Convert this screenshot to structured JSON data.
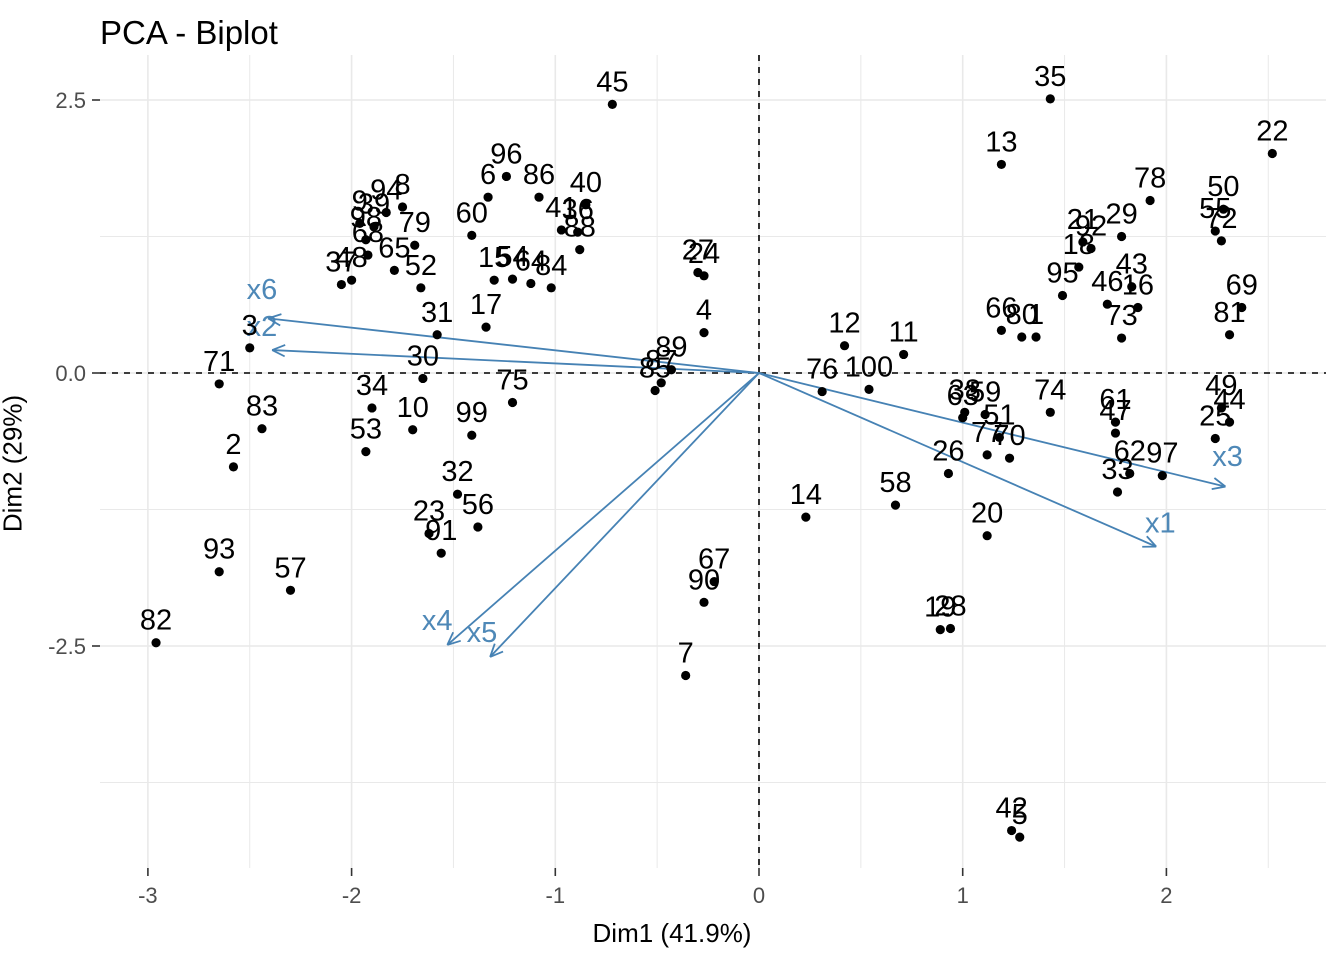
{
  "chart_data": {
    "type": "scatter",
    "title": "PCA - Biplot",
    "xlabel": "Dim1 (41.9%)",
    "ylabel": "Dim2 (29%)",
    "xlim": [
      -3.23,
      2.78
    ],
    "ylim": [
      -4.53,
      2.91
    ],
    "x_ticks": [
      -3,
      -2,
      -1,
      0,
      1,
      2
    ],
    "x_tick_labels": [
      "-3",
      "-2",
      "-1",
      "0",
      "1",
      "2"
    ],
    "x_minor_ticks": [
      -2.5,
      -1.5,
      -0.5,
      0.5,
      1.5,
      2.5
    ],
    "y_ticks": [
      2.5,
      0,
      -2.5
    ],
    "y_tick_labels": [
      "2.5",
      "0.0",
      "-2.5"
    ],
    "y_minor_ticks": [
      1.25,
      -1.25,
      -3.75
    ],
    "grid": true,
    "zero_lines_dashed": true,
    "legend_position": "none",
    "colors": {
      "point": "#000000",
      "point_label": "#000000",
      "arrow": "#4682B4",
      "arrow_label": "#4e88b7",
      "grid": "#e9e9e9",
      "dashed_line": "#000000",
      "tick_text": "#4d4d4d",
      "tick_mark": "#333333",
      "background": "#ffffff"
    },
    "points": [
      {
        "n": "1",
        "x": 1.36,
        "y": 0.33
      },
      {
        "n": "2",
        "x": -2.58,
        "y": -0.86
      },
      {
        "n": "3",
        "x": -2.5,
        "y": 0.23
      },
      {
        "n": "4",
        "x": -0.27,
        "y": 0.37
      },
      {
        "n": "5",
        "x": 1.28,
        "y": -4.25
      },
      {
        "n": "6",
        "x": -1.33,
        "y": 1.61
      },
      {
        "n": "7",
        "x": -0.36,
        "y": -2.77
      },
      {
        "n": "8",
        "x": -1.75,
        "y": 1.52
      },
      {
        "n": "9",
        "x": -1.96,
        "y": 1.37
      },
      {
        "n": "10",
        "x": -1.7,
        "y": -0.52
      },
      {
        "n": "11",
        "x": 0.71,
        "y": 0.17
      },
      {
        "n": "12",
        "x": 0.42,
        "y": 0.25
      },
      {
        "n": "13",
        "x": 1.19,
        "y": 1.91
      },
      {
        "n": "14",
        "x": 0.23,
        "y": -1.32
      },
      {
        "n": "15",
        "x": -1.3,
        "y": 0.85
      },
      {
        "n": "16",
        "x": 1.86,
        "y": 0.6
      },
      {
        "n": "17",
        "x": -1.34,
        "y": 0.42
      },
      {
        "n": "18",
        "x": 1.57,
        "y": 0.97
      },
      {
        "n": "19",
        "x": 0.89,
        "y": -2.35
      },
      {
        "n": "20",
        "x": 1.12,
        "y": -1.49
      },
      {
        "n": "21",
        "x": 1.59,
        "y": 1.2
      },
      {
        "n": "22",
        "x": 2.52,
        "y": 2.01
      },
      {
        "n": "23",
        "x": -1.62,
        "y": -1.47
      },
      {
        "n": "24",
        "x": -0.27,
        "y": 0.89
      },
      {
        "n": "25",
        "x": 2.24,
        "y": -0.6
      },
      {
        "n": "26",
        "x": 0.93,
        "y": -0.92
      },
      {
        "n": "27",
        "x": -0.3,
        "y": 0.92
      },
      {
        "n": "28",
        "x": 0.94,
        "y": -2.34
      },
      {
        "n": "29",
        "x": 1.78,
        "y": 1.25
      },
      {
        "n": "30",
        "x": -1.65,
        "y": -0.05
      },
      {
        "n": "31",
        "x": -1.58,
        "y": 0.35
      },
      {
        "n": "32",
        "x": -1.48,
        "y": -1.11
      },
      {
        "n": "33",
        "x": 1.76,
        "y": -1.09
      },
      {
        "n": "34",
        "x": -1.9,
        "y": -0.32
      },
      {
        "n": "35",
        "x": 1.43,
        "y": 2.51
      },
      {
        "n": "36",
        "x": -0.89,
        "y": 1.29
      },
      {
        "n": "37",
        "x": -2.05,
        "y": 0.81
      },
      {
        "n": "38",
        "x": 1.01,
        "y": -0.36
      },
      {
        "n": "39",
        "x": -1.89,
        "y": 1.34
      },
      {
        "n": "40",
        "x": -0.85,
        "y": 1.54
      },
      {
        "n": "41",
        "x": -0.97,
        "y": 1.31
      },
      {
        "n": "42",
        "x": 1.24,
        "y": -4.19
      },
      {
        "n": "43",
        "x": 1.83,
        "y": 0.79
      },
      {
        "n": "44",
        "x": 2.31,
        "y": -0.45
      },
      {
        "n": "45",
        "x": -0.72,
        "y": 2.46
      },
      {
        "n": "46",
        "x": 1.71,
        "y": 0.63
      },
      {
        "n": "47",
        "x": 1.75,
        "y": -0.55
      },
      {
        "n": "48",
        "x": -2.0,
        "y": 0.85
      },
      {
        "n": "49",
        "x": 2.27,
        "y": -0.32
      },
      {
        "n": "50",
        "x": 2.28,
        "y": 1.5
      },
      {
        "n": "51",
        "x": 1.18,
        "y": -0.59
      },
      {
        "n": "52",
        "x": -1.66,
        "y": 0.78
      },
      {
        "n": "53",
        "x": -1.93,
        "y": -0.72
      },
      {
        "n": "54",
        "x": -1.21,
        "y": 0.86
      },
      {
        "n": "55",
        "x": 2.24,
        "y": 1.3
      },
      {
        "n": "56",
        "x": -1.38,
        "y": -1.41
      },
      {
        "n": "57",
        "x": -2.3,
        "y": -1.99
      },
      {
        "n": "58",
        "x": 0.67,
        "y": -1.21
      },
      {
        "n": "59",
        "x": 1.11,
        "y": -0.38
      },
      {
        "n": "60",
        "x": -1.41,
        "y": 1.26
      },
      {
        "n": "61",
        "x": 1.75,
        "y": -0.45
      },
      {
        "n": "62",
        "x": 1.82,
        "y": -0.92
      },
      {
        "n": "63",
        "x": 1.0,
        "y": -0.41
      },
      {
        "n": "64",
        "x": -1.12,
        "y": 0.82
      },
      {
        "n": "65",
        "x": -1.79,
        "y": 0.94
      },
      {
        "n": "66",
        "x": 1.19,
        "y": 0.39
      },
      {
        "n": "67",
        "x": -0.22,
        "y": -1.91
      },
      {
        "n": "68",
        "x": -1.92,
        "y": 1.08
      },
      {
        "n": "69",
        "x": 2.37,
        "y": 0.6
      },
      {
        "n": "70",
        "x": 1.23,
        "y": -0.78
      },
      {
        "n": "71",
        "x": -2.65,
        "y": -0.1
      },
      {
        "n": "72",
        "x": 2.27,
        "y": 1.21
      },
      {
        "n": "73",
        "x": 1.78,
        "y": 0.32
      },
      {
        "n": "74",
        "x": 1.43,
        "y": -0.36
      },
      {
        "n": "75",
        "x": -1.21,
        "y": -0.27
      },
      {
        "n": "76",
        "x": 0.31,
        "y": -0.17
      },
      {
        "n": "77",
        "x": 1.12,
        "y": -0.75
      },
      {
        "n": "78",
        "x": 1.92,
        "y": 1.58
      },
      {
        "n": "79",
        "x": -1.69,
        "y": 1.17
      },
      {
        "n": "80",
        "x": 1.29,
        "y": 0.33
      },
      {
        "n": "81",
        "x": 2.31,
        "y": 0.35
      },
      {
        "n": "82",
        "x": -2.96,
        "y": -2.47
      },
      {
        "n": "83",
        "x": -2.44,
        "y": -0.51
      },
      {
        "n": "84",
        "x": -1.02,
        "y": 0.78
      },
      {
        "n": "85",
        "x": -0.51,
        "y": -0.16
      },
      {
        "n": "86",
        "x": -1.08,
        "y": 1.61
      },
      {
        "n": "87",
        "x": -0.48,
        "y": -0.09
      },
      {
        "n": "88",
        "x": -0.88,
        "y": 1.13
      },
      {
        "n": "89",
        "x": -0.43,
        "y": 0.03
      },
      {
        "n": "90",
        "x": -0.27,
        "y": -2.1
      },
      {
        "n": "91",
        "x": -1.56,
        "y": -1.65
      },
      {
        "n": "92",
        "x": 1.63,
        "y": 1.14
      },
      {
        "n": "93",
        "x": -2.65,
        "y": -1.82
      },
      {
        "n": "94",
        "x": -1.83,
        "y": 1.47
      },
      {
        "n": "95",
        "x": 1.49,
        "y": 0.71
      },
      {
        "n": "96",
        "x": -1.24,
        "y": 1.8
      },
      {
        "n": "97",
        "x": 1.98,
        "y": -0.94
      },
      {
        "n": "98",
        "x": -1.93,
        "y": 1.22
      },
      {
        "n": "99",
        "x": -1.41,
        "y": -0.57
      },
      {
        "n": "100",
        "x": 0.54,
        "y": -0.15
      }
    ],
    "arrows": [
      {
        "label": "x1",
        "x": 1.95,
        "y": -1.59,
        "lx": 1.97,
        "ly": -1.38
      },
      {
        "label": "x2",
        "x": -2.39,
        "y": 0.21,
        "lx": -2.44,
        "ly": 0.42
      },
      {
        "label": "x3",
        "x": 2.29,
        "y": -1.04,
        "lx": 2.3,
        "ly": -0.77
      },
      {
        "label": "x4",
        "x": -1.53,
        "y": -2.49,
        "lx": -1.58,
        "ly": -2.27
      },
      {
        "label": "x5",
        "x": -1.32,
        "y": -2.6,
        "lx": -1.36,
        "ly": -2.38
      },
      {
        "label": "x6",
        "x": -2.41,
        "y": 0.5,
        "lx": -2.44,
        "ly": 0.76
      }
    ]
  }
}
